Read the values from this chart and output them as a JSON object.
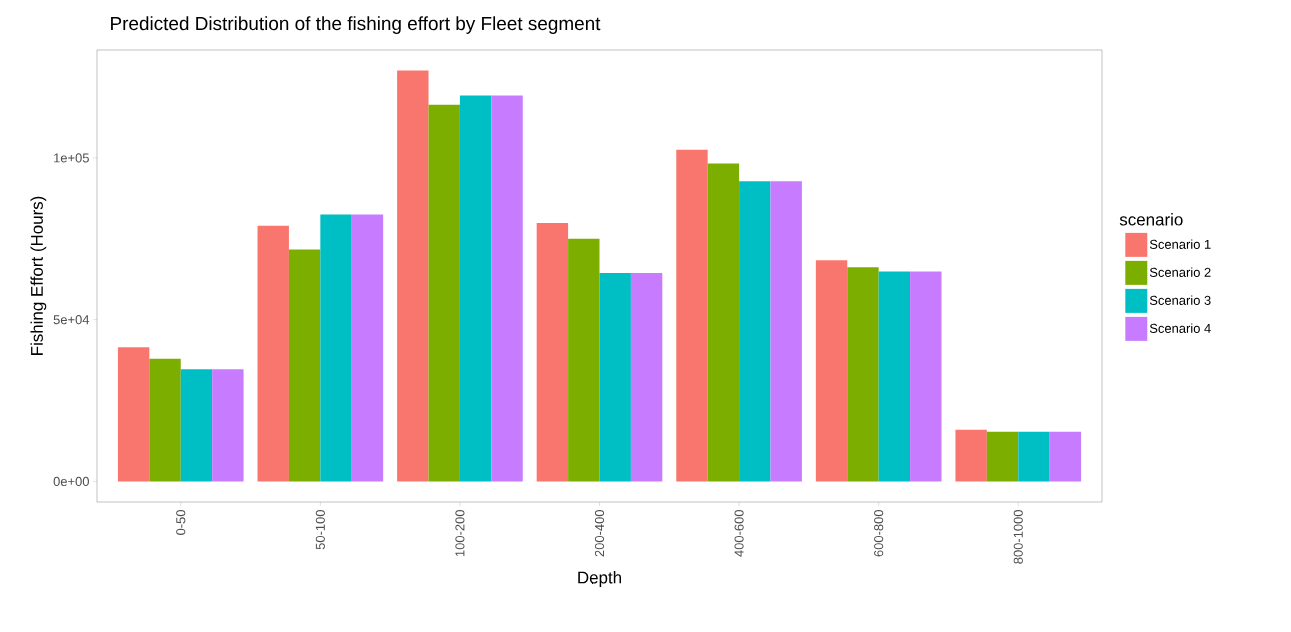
{
  "chart_data": {
    "type": "bar",
    "title": "Predicted Distribution of the fishing effort by Fleet segment",
    "xlabel": "Depth",
    "ylabel": "Fishing Effort (Hours)",
    "legend_title": "scenario",
    "categories": [
      "0-50",
      "50-100",
      "100-200",
      "200-400",
      "400-600",
      "600-800",
      "800-1000"
    ],
    "series": [
      {
        "name": "Scenario 1",
        "color": "#f8766d",
        "values": [
          41500,
          79000,
          127000,
          79900,
          102500,
          68400,
          16000
        ]
      },
      {
        "name": "Scenario 2",
        "color": "#7cae00",
        "values": [
          37900,
          71700,
          116400,
          75000,
          98300,
          66200,
          15400
        ]
      },
      {
        "name": "Scenario 3",
        "color": "#00bfc4",
        "values": [
          34700,
          82500,
          119300,
          64400,
          92800,
          64900,
          15400
        ]
      },
      {
        "name": "Scenario 4",
        "color": "#c77cff",
        "values": [
          34700,
          82500,
          119300,
          64400,
          92800,
          64900,
          15400
        ]
      }
    ],
    "ylim": [
      -6350,
      133350
    ],
    "yticks": [
      {
        "value": 0,
        "label": "0e+00"
      },
      {
        "value": 50000,
        "label": "5e+04"
      },
      {
        "value": 100000,
        "label": "1e+05"
      }
    ],
    "legend": "right"
  }
}
